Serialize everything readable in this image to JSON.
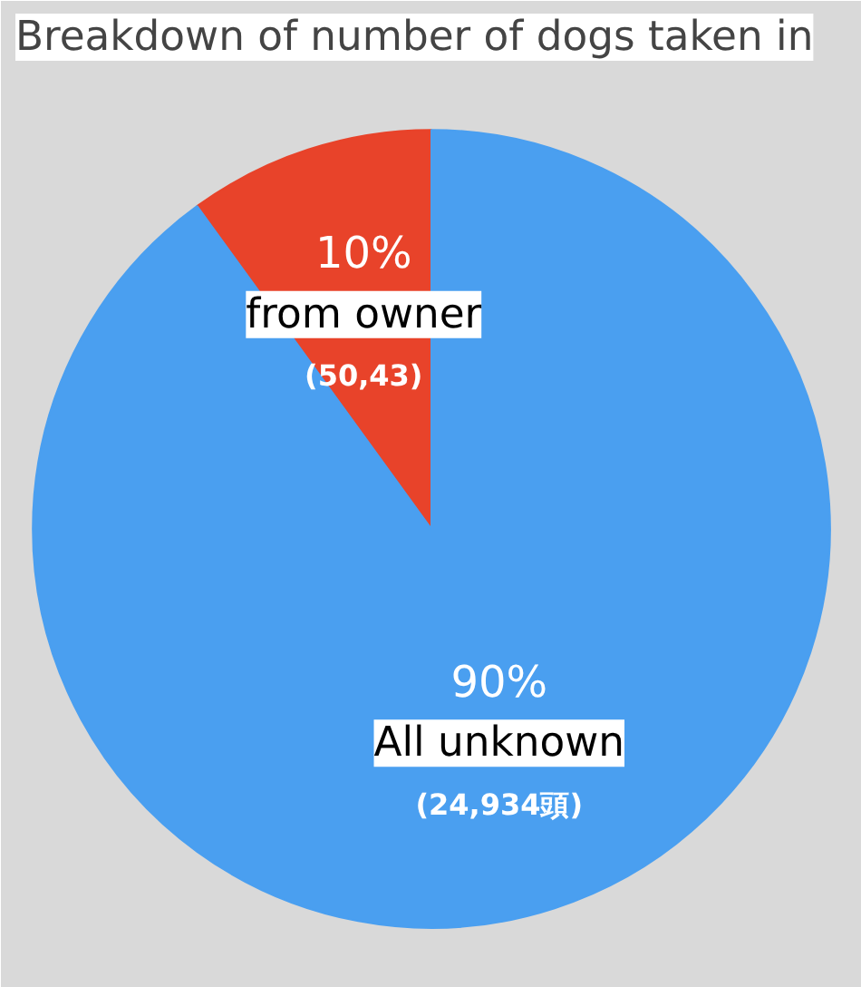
{
  "chart_data": {
    "type": "pie",
    "title": "Breakdown of number of dogs taken in",
    "categories": [
      "from owner",
      "All unknown"
    ],
    "values": [
      10,
      90
    ],
    "colors": [
      "#e8432a",
      "#4a9ff0"
    ],
    "value_labels": [
      "10%",
      "90%"
    ],
    "annotations": [
      "(50,43)",
      "(24,934頭)"
    ],
    "legend": false
  }
}
